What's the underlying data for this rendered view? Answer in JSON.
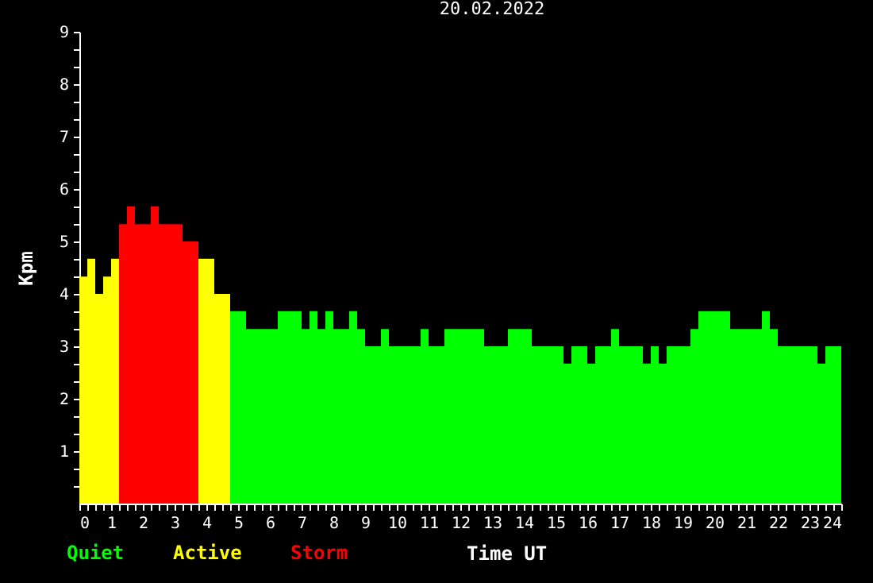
{
  "chart_data": {
    "type": "bar",
    "title": "20.02.2022",
    "xlabel": "Time UT",
    "ylabel": "Kpm",
    "x": [
      0.125,
      0.375,
      0.625,
      0.875,
      1.125,
      1.375,
      1.625,
      1.875,
      2.125,
      2.375,
      2.625,
      2.875,
      3.125,
      3.375,
      3.625,
      3.875,
      4.125,
      4.375,
      4.625,
      4.875,
      5.125,
      5.375,
      5.625,
      5.875,
      6.125,
      6.375,
      6.625,
      6.875,
      7.125,
      7.375,
      7.625,
      7.875,
      8.125,
      8.375,
      8.625,
      8.875,
      9.125,
      9.375,
      9.625,
      9.875,
      10.125,
      10.375,
      10.625,
      10.875,
      11.125,
      11.375,
      11.625,
      11.875,
      12.125,
      12.375,
      12.625,
      12.875,
      13.125,
      13.375,
      13.625,
      13.875,
      14.125,
      14.375,
      14.625,
      14.875,
      15.125,
      15.375,
      15.625,
      15.875,
      16.125,
      16.375,
      16.625,
      16.875,
      17.125,
      17.375,
      17.625,
      17.875,
      18.125,
      18.375,
      18.625,
      18.875,
      19.125,
      19.375,
      19.625,
      19.875,
      20.125,
      20.375,
      20.625,
      20.875,
      21.125,
      21.375,
      21.625,
      21.875,
      22.125,
      22.375,
      22.625,
      22.875,
      23.125,
      23.375,
      23.625,
      23.875
    ],
    "series": [
      {
        "name": "Quiet",
        "color": "#00ff00",
        "values": [
          null,
          null,
          null,
          null,
          null,
          null,
          null,
          null,
          null,
          null,
          null,
          null,
          null,
          null,
          null,
          null,
          null,
          null,
          null,
          3.67,
          3.67,
          3.33,
          3.33,
          3.33,
          3.33,
          3.67,
          3.67,
          3.67,
          3.33,
          3.67,
          3.33,
          3.67,
          3.33,
          3.33,
          3.67,
          3.33,
          3,
          3,
          3.33,
          3,
          3,
          3,
          3,
          3.33,
          3,
          3,
          3.33,
          3.33,
          3.33,
          3.33,
          3.33,
          3,
          3,
          3,
          3.33,
          3.33,
          3.33,
          3,
          3,
          3,
          3,
          2.67,
          3,
          3,
          2.67,
          3,
          3,
          3.33,
          3,
          3,
          3,
          2.67,
          3,
          2.67,
          3,
          3,
          3,
          3.33,
          3.67,
          3.67,
          3.67,
          3.67,
          3.33,
          3.33,
          3.33,
          3.33,
          3.67,
          3.33,
          3,
          3,
          3,
          3,
          3,
          2.67,
          3,
          3
        ]
      },
      {
        "name": "Active",
        "color": "#ffff00",
        "values": [
          4.33,
          4.67,
          4,
          4.33,
          4.67,
          null,
          null,
          null,
          null,
          null,
          null,
          null,
          null,
          null,
          null,
          4.67,
          4.67,
          4,
          4,
          null,
          null,
          null,
          null,
          null,
          null,
          null,
          null,
          null,
          null,
          null,
          null,
          null,
          null,
          null,
          null,
          null,
          null,
          null,
          null,
          null,
          null,
          null,
          null,
          null,
          null,
          null,
          null,
          null,
          null,
          null,
          null,
          null,
          null,
          null,
          null,
          null,
          null,
          null,
          null,
          null,
          null,
          null,
          null,
          null,
          null,
          null,
          null,
          null,
          null,
          null,
          null,
          null,
          null,
          null,
          null,
          null,
          null,
          null,
          null,
          null,
          null,
          null,
          null,
          null,
          null,
          null,
          null,
          null,
          null,
          null,
          null,
          null,
          null,
          null,
          null,
          null
        ]
      },
      {
        "name": "Storm",
        "color": "#ff0000",
        "values": [
          null,
          null,
          null,
          null,
          null,
          5.33,
          5.67,
          5.33,
          5.33,
          5.67,
          5.33,
          5.33,
          5.33,
          5,
          5,
          null,
          null,
          null,
          null,
          null,
          null,
          null,
          null,
          null,
          null,
          null,
          null,
          null,
          null,
          null,
          null,
          null,
          null,
          null,
          null,
          null,
          null,
          null,
          null,
          null,
          null,
          null,
          null,
          null,
          null,
          null,
          null,
          null,
          null,
          null,
          null,
          null,
          null,
          null,
          null,
          null,
          null,
          null,
          null,
          null,
          null,
          null,
          null,
          null,
          null,
          null,
          null,
          null,
          null,
          null,
          null,
          null,
          null,
          null,
          null,
          null,
          null,
          null,
          null,
          null,
          null,
          null,
          null,
          null,
          null,
          null,
          null,
          null,
          null,
          null,
          null,
          null,
          null,
          null,
          null,
          null
        ]
      }
    ],
    "xlim": [
      0,
      24
    ],
    "xticks": [
      0,
      {
        "value": 0.25,
        "label": null
      },
      {
        "value": 0.5,
        "label": null
      },
      {
        "value": 0.75,
        "label": null
      },
      1,
      {
        "value": 1.25,
        "label": null
      },
      {
        "value": 1.5,
        "label": null
      },
      {
        "value": 1.75,
        "label": null
      },
      2,
      {
        "value": 2.25,
        "label": null
      },
      {
        "value": 2.5,
        "label": null
      },
      {
        "value": 2.75,
        "label": null
      },
      3,
      {
        "value": 3.25,
        "label": null
      },
      {
        "value": 3.5,
        "label": null
      },
      {
        "value": 3.75,
        "label": null
      },
      4,
      {
        "value": 4.25,
        "label": null
      },
      {
        "value": 4.5,
        "label": null
      },
      {
        "value": 4.75,
        "label": null
      },
      5,
      {
        "value": 5.25,
        "label": null
      },
      {
        "value": 5.5,
        "label": null
      },
      {
        "value": 5.75,
        "label": null
      },
      6,
      {
        "value": 6.25,
        "label": null
      },
      {
        "value": 6.5,
        "label": null
      },
      {
        "value": 6.75,
        "label": null
      },
      7,
      {
        "value": 7.25,
        "label": null
      },
      {
        "value": 7.5,
        "label": null
      },
      {
        "value": 7.75,
        "label": null
      },
      8,
      {
        "value": 8.25,
        "label": null
      },
      {
        "value": 8.5,
        "label": null
      },
      {
        "value": 8.75,
        "label": null
      },
      9,
      {
        "value": 9.25,
        "label": null
      },
      {
        "value": 9.5,
        "label": null
      },
      {
        "value": 9.75,
        "label": null
      },
      10,
      {
        "value": 10.25,
        "label": null
      },
      {
        "value": 10.5,
        "label": null
      },
      {
        "value": 10.75,
        "label": null
      },
      11,
      {
        "value": 11.25,
        "label": null
      },
      {
        "value": 11.5,
        "label": null
      },
      {
        "value": 11.75,
        "label": null
      },
      12,
      {
        "value": 12.25,
        "label": null
      },
      {
        "value": 12.5,
        "label": null
      },
      {
        "value": 12.75,
        "label": null
      },
      13,
      {
        "value": 13.25,
        "label": null
      },
      {
        "value": 13.5,
        "label": null
      },
      {
        "value": 13.75,
        "label": null
      },
      14,
      {
        "value": 14.25,
        "label": null
      },
      {
        "value": 14.5,
        "label": null
      },
      {
        "value": 14.75,
        "label": null
      },
      15,
      {
        "value": 15.25,
        "label": null
      },
      {
        "value": 15.5,
        "label": null
      },
      {
        "value": 15.75,
        "label": null
      },
      16,
      {
        "value": 16.25,
        "label": null
      },
      {
        "value": 16.5,
        "label": null
      },
      {
        "value": 16.75,
        "label": null
      },
      17,
      {
        "value": 17.25,
        "label": null
      },
      {
        "value": 17.5,
        "label": null
      },
      {
        "value": 17.75,
        "label": null
      },
      18,
      {
        "value": 18.25,
        "label": null
      },
      {
        "value": 18.5,
        "label": null
      },
      {
        "value": 18.75,
        "label": null
      },
      19,
      {
        "value": 19.25,
        "label": null
      },
      {
        "value": 19.5,
        "label": null
      },
      {
        "value": 19.75,
        "label": null
      },
      20,
      {
        "value": 20.25,
        "label": null
      },
      {
        "value": 20.5,
        "label": null
      },
      {
        "value": 20.75,
        "label": null
      },
      21,
      {
        "value": 21.25,
        "label": null
      },
      {
        "value": 21.5,
        "label": null
      },
      {
        "value": 21.75,
        "label": null
      },
      22,
      {
        "value": 22.25,
        "label": null
      },
      {
        "value": 22.5,
        "label": null
      },
      {
        "value": 22.75,
        "label": null
      },
      23,
      {
        "value": 23.25,
        "label": null
      },
      {
        "value": 23.5,
        "label": null
      },
      {
        "value": 23.75,
        "label": null
      },
      24
    ],
    "ylim": [
      0,
      9
    ],
    "yticks": [
      {
        "value": 0.33,
        "label": null
      },
      {
        "value": 0.67,
        "label": null
      },
      1,
      {
        "value": 1.33,
        "label": null
      },
      {
        "value": 1.67,
        "label": null
      },
      2,
      {
        "value": 2.33,
        "label": null
      },
      {
        "value": 2.67,
        "label": null
      },
      3,
      {
        "value": 3.33,
        "label": null
      },
      {
        "value": 3.67,
        "label": null
      },
      4,
      {
        "value": 4.33,
        "label": null
      },
      {
        "value": 4.67,
        "label": null
      },
      5,
      {
        "value": 5.33,
        "label": null
      },
      {
        "value": 5.67,
        "label": null
      },
      6,
      {
        "value": 6.33,
        "label": null
      },
      {
        "value": 6.67,
        "label": null
      },
      7,
      {
        "value": 7.33,
        "label": null
      },
      {
        "value": 7.67,
        "label": null
      },
      8,
      {
        "value": 8.33,
        "label": null
      },
      {
        "value": 8.67,
        "label": null
      },
      9
    ],
    "grid": false,
    "legend": "bottom left"
  }
}
